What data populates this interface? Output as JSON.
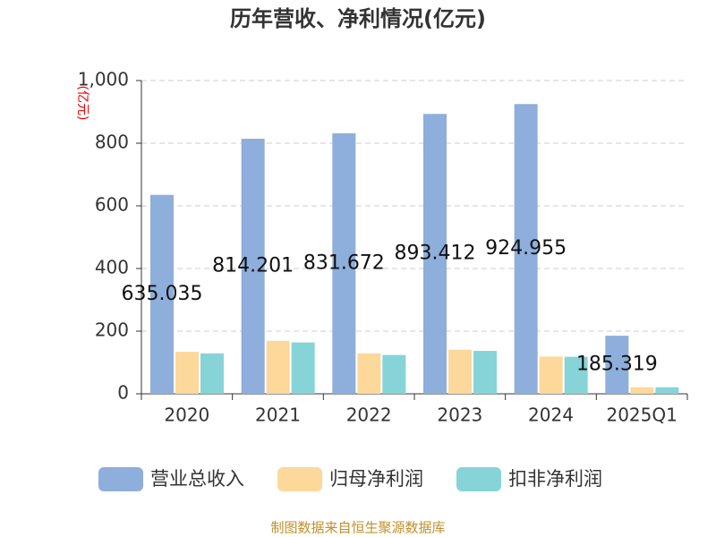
{
  "chart_data": {
    "type": "bar",
    "title": "历年营收、净利情况(亿元)",
    "y_label": "(亿元)",
    "categories": [
      "2020",
      "2021",
      "2022",
      "2023",
      "2024",
      "2025Q1"
    ],
    "series": [
      {
        "name": "营业总收入",
        "color": "#8eaedb",
        "values": [
          635.035,
          814.201,
          831.672,
          893.412,
          924.955,
          185.319
        ],
        "show_labels": true
      },
      {
        "name": "归母净利润",
        "color": "#fdd89b",
        "values": [
          134,
          169,
          129,
          141,
          119,
          21
        ]
      },
      {
        "name": "扣非净利润",
        "color": "#86d4d8",
        "values": [
          129,
          164,
          124,
          137,
          118,
          21
        ]
      }
    ],
    "ylim": [
      0,
      1000
    ],
    "yticks": [
      0,
      200,
      400,
      600,
      800,
      {
        "value": 1000,
        "label": "1,000"
      }
    ],
    "grid": true,
    "legend": "bottom",
    "source": "制图数据来自恒生聚源数据库"
  }
}
